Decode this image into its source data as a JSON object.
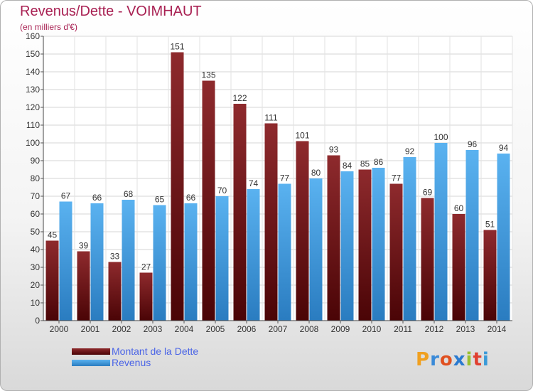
{
  "chart_data": {
    "type": "bar",
    "title": "Revenus/Dette - VOIMHAUT",
    "subtitle": "(en milliers d'€)",
    "categories": [
      "2000",
      "2001",
      "2002",
      "2003",
      "2004",
      "2005",
      "2006",
      "2007",
      "2008",
      "2009",
      "2010",
      "2011",
      "2012",
      "2013",
      "2014"
    ],
    "series": [
      {
        "name": "Montant de la Dette",
        "color": "#8b1a1f",
        "values": [
          45,
          39,
          33,
          27,
          151,
          135,
          122,
          111,
          101,
          93,
          85,
          77,
          69,
          60,
          51
        ]
      },
      {
        "name": "Revenus",
        "color": "#3d9be0",
        "values": [
          67,
          66,
          68,
          65,
          66,
          70,
          74,
          77,
          80,
          84,
          86,
          92,
          100,
          96,
          94
        ]
      }
    ],
    "ylim": [
      0,
      160
    ],
    "yticks": [
      0,
      10,
      20,
      30,
      40,
      50,
      60,
      70,
      80,
      90,
      100,
      110,
      120,
      130,
      140,
      150,
      160
    ],
    "grid": true,
    "legend_position": "bottom-left"
  },
  "logo": {
    "letters": [
      "P",
      "r",
      "o",
      "x",
      "i",
      "t",
      "i"
    ],
    "colors": [
      "#f0a020",
      "#3a8ad8",
      "#e05020",
      "#2a7ad0",
      "#9ac030",
      "#e04030",
      "#3a9ad8"
    ]
  }
}
